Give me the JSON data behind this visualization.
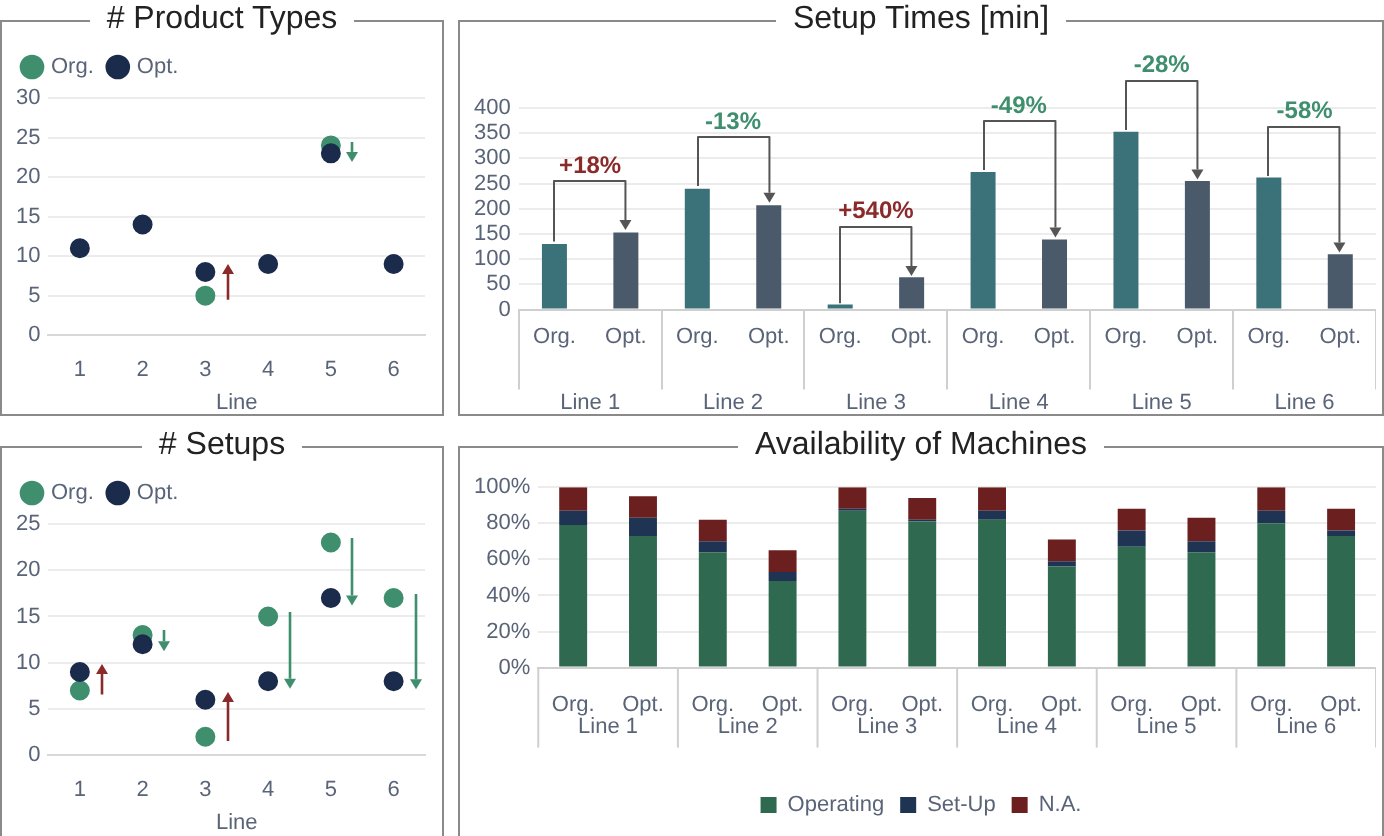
{
  "chart_data": [
    {
      "type": "scatter",
      "title": "# Product Types",
      "xlabel": "Line",
      "x": [
        1,
        2,
        3,
        4,
        5,
        6
      ],
      "xlim": [
        0.5,
        6.5
      ],
      "xticks": [
        1,
        2,
        3,
        4,
        5,
        6
      ],
      "ylim": [
        0,
        30
      ],
      "yticks": [
        0,
        5,
        10,
        15,
        20,
        25,
        30
      ],
      "grid": "y",
      "legend": "top left",
      "marker": "circle",
      "series": [
        {
          "name": "Org.",
          "color": "#3f8f6f",
          "values": [
            null,
            null,
            5,
            null,
            24,
            null
          ]
        },
        {
          "name": "Opt.",
          "color": "#1b2b4b",
          "values": [
            11,
            14,
            8,
            9,
            23,
            9
          ]
        }
      ]
    },
    {
      "type": "bar",
      "title": "Setup Times [min]",
      "categories": [
        "Line 1",
        "Line 2",
        "Line 3",
        "Line 4",
        "Line 5",
        "Line 6"
      ],
      "ylim": [
        0,
        400
      ],
      "yticks": [
        0,
        50,
        100,
        150,
        200,
        250,
        300,
        350,
        400
      ],
      "grid": "y",
      "series": [
        {
          "name": "Org.",
          "color": "#3b727a",
          "values": [
            130,
            240,
            10,
            273,
            353,
            262
          ]
        },
        {
          "name": "Opt.",
          "color": "#4a5a6a",
          "values": [
            153,
            207,
            64,
            139,
            255,
            110
          ]
        }
      ],
      "annotations": [
        "+18%",
        "-13%",
        "+540%",
        "-49%",
        "-28%",
        "-58%"
      ]
    },
    {
      "type": "scatter",
      "title": "# Setups",
      "xlabel": "Line",
      "x": [
        1,
        2,
        3,
        4,
        5,
        6
      ],
      "xlim": [
        0.5,
        6.5
      ],
      "xticks": [
        1,
        2,
        3,
        4,
        5,
        6
      ],
      "ylim": [
        0,
        25
      ],
      "yticks": [
        0,
        5,
        10,
        15,
        20,
        25
      ],
      "grid": "y",
      "legend": "top left",
      "marker": "circle",
      "series": [
        {
          "name": "Org.",
          "color": "#3f8f6f",
          "values": [
            7,
            13,
            2,
            15,
            23,
            17
          ]
        },
        {
          "name": "Opt.",
          "color": "#1b2b4b",
          "values": [
            9,
            12,
            6,
            8,
            17,
            8
          ]
        }
      ]
    },
    {
      "type": "bar",
      "title": "Availability of Machines",
      "stacked": true,
      "categories": [
        "Org.",
        "Opt.",
        "Org.",
        "Opt.",
        "Org.",
        "Opt.",
        "Org.",
        "Opt.",
        "Org.",
        "Opt.",
        "Org.",
        "Opt."
      ],
      "ylim": [
        0,
        100
      ],
      "yticks": [
        {
          "value": 0,
          "label": "0%"
        },
        {
          "value": 20,
          "label": "20%"
        },
        {
          "value": 40,
          "label": "40%"
        },
        {
          "value": 60,
          "label": "60%"
        },
        {
          "value": 80,
          "label": "80%"
        },
        {
          "value": 100,
          "label": "100%"
        }
      ],
      "grid": "y",
      "legend": "bottom",
      "series": [
        {
          "name": "Operating",
          "color": "#2f6a50",
          "values": [
            79,
            73,
            64,
            48,
            87,
            81,
            82,
            56,
            67,
            64,
            80,
            73
          ]
        },
        {
          "name": "Set-Up",
          "color": "#1f3352",
          "values": [
            8,
            10,
            6,
            5,
            1,
            1,
            5,
            3,
            9,
            6,
            7,
            3
          ]
        },
        {
          "name": "N.A.",
          "color": "#6b1f1f",
          "values": [
            13,
            12,
            12,
            12,
            12,
            12,
            13,
            12,
            12,
            13,
            13,
            12
          ]
        }
      ],
      "annotations": [
        "Line 1",
        "Line 2",
        "Line 3",
        "Line 4",
        "Line 5",
        "Line 6"
      ]
    }
  ]
}
